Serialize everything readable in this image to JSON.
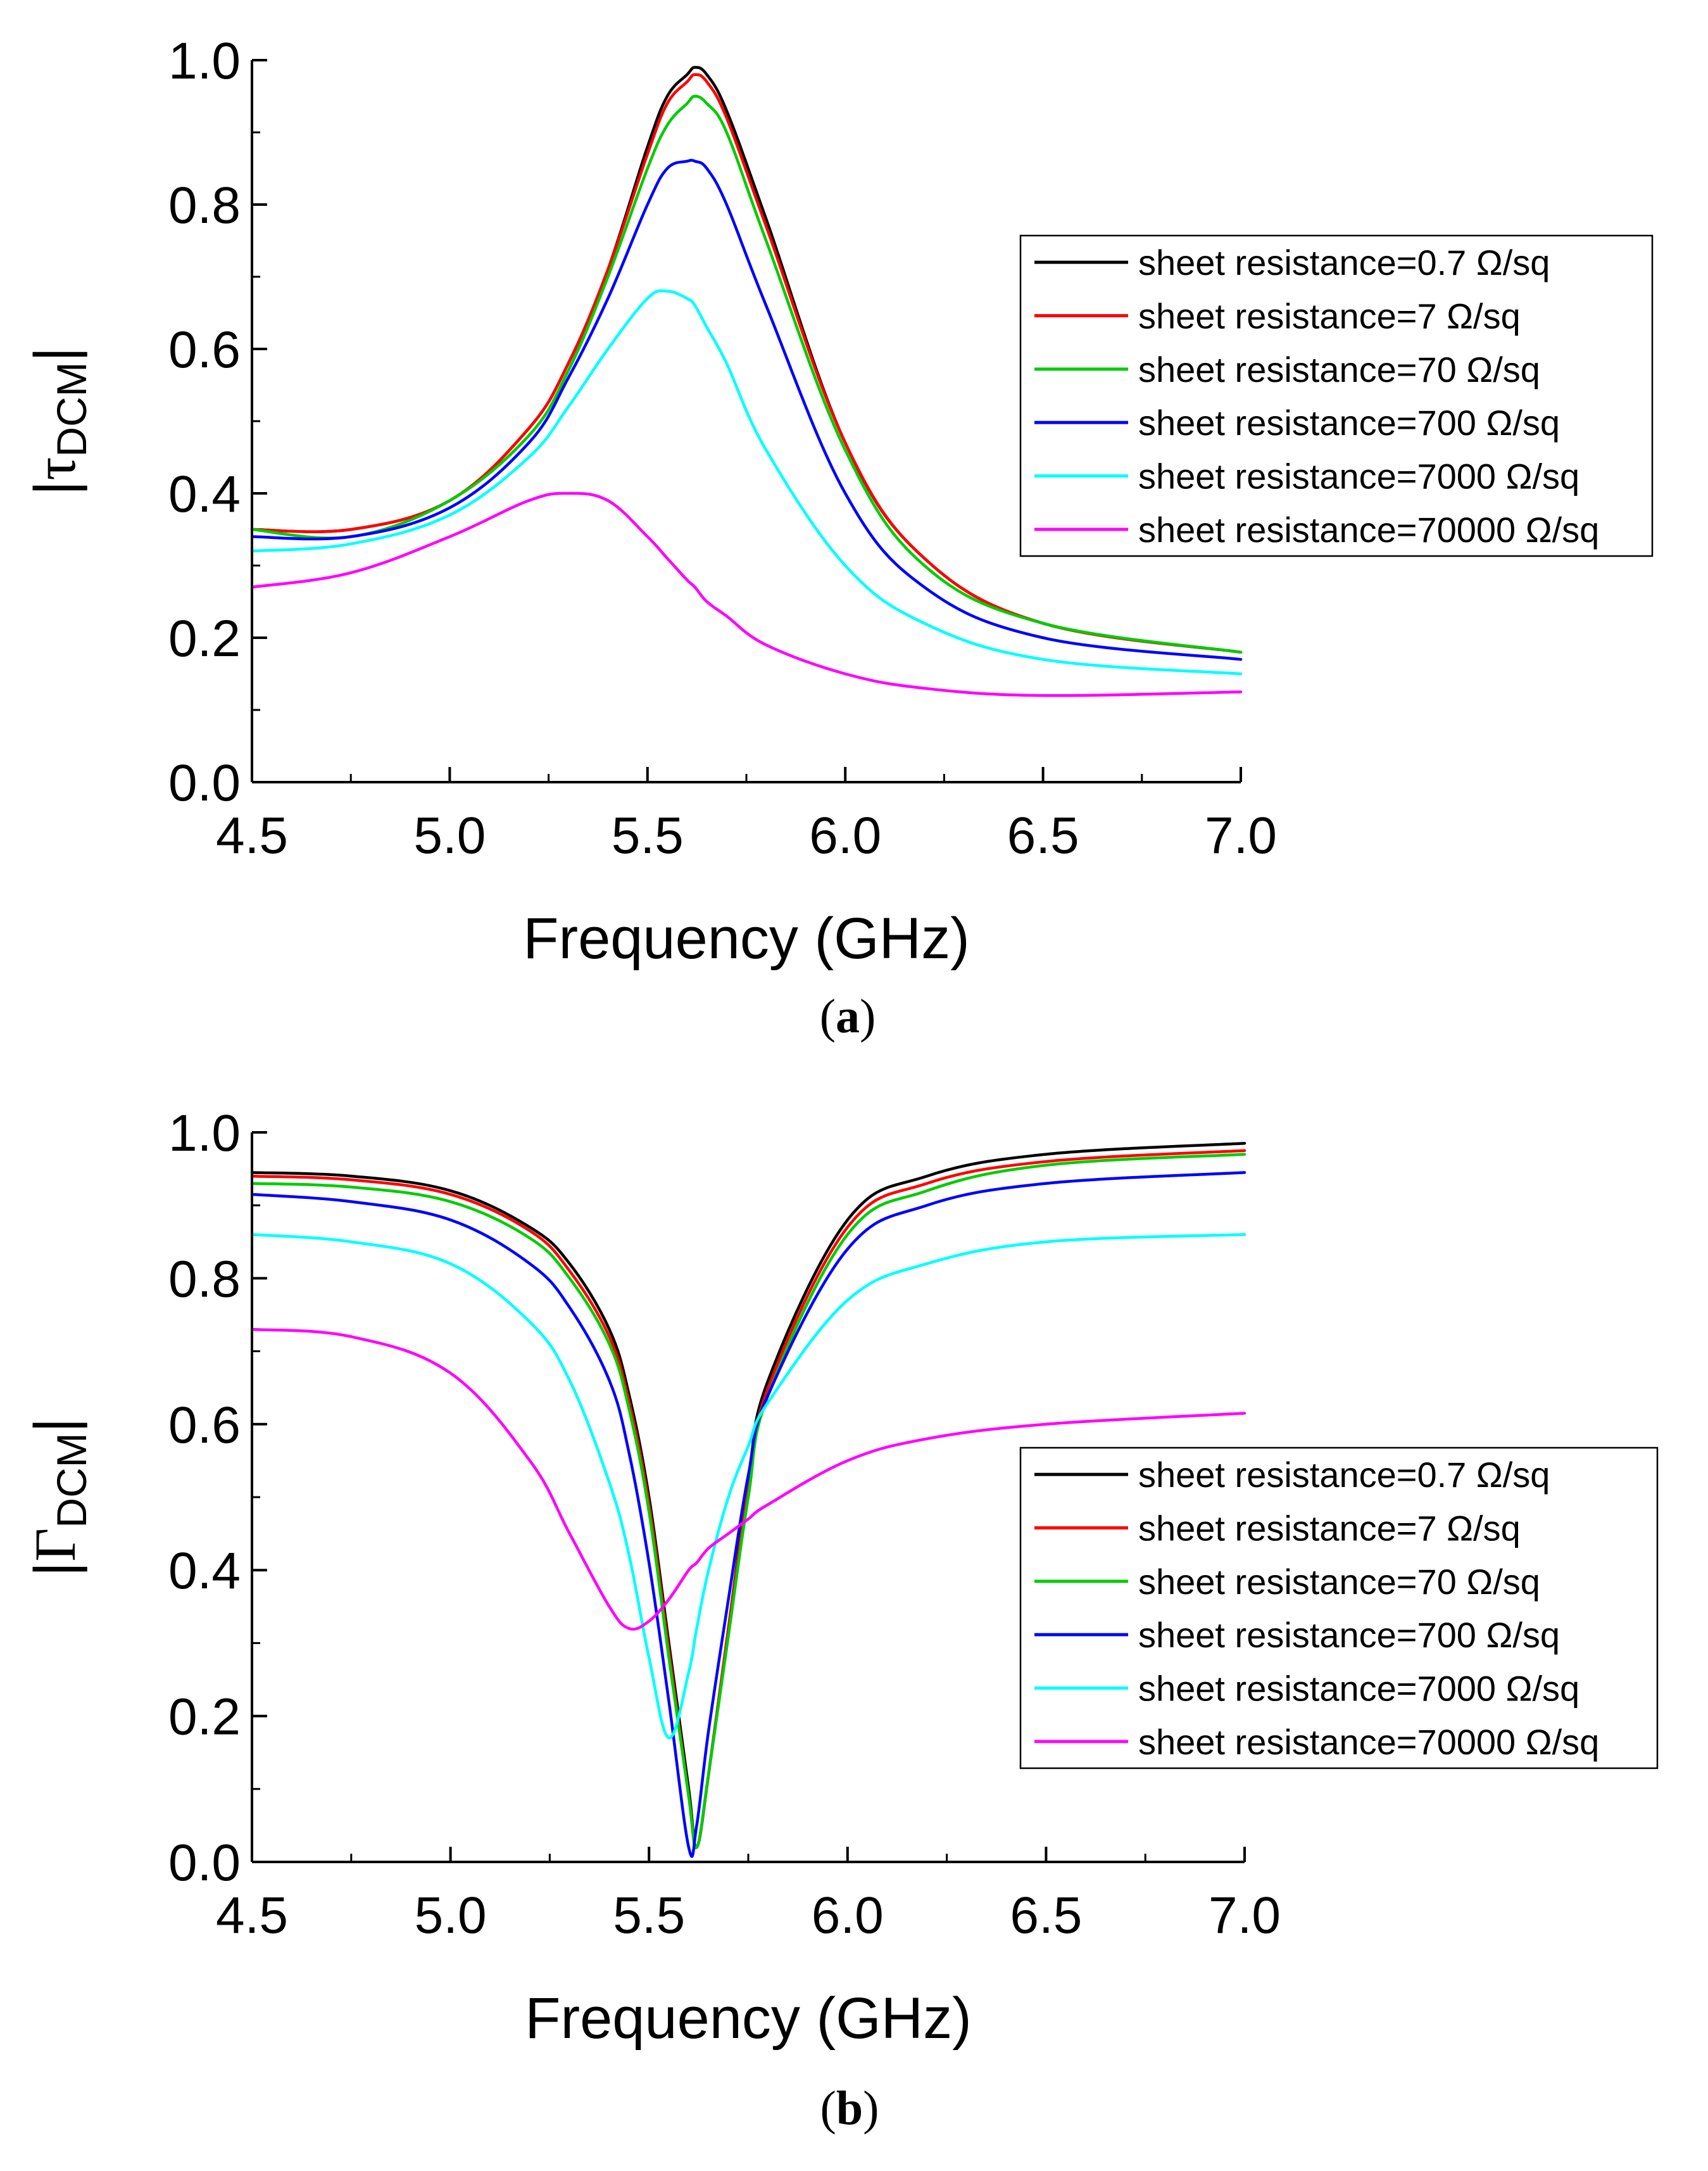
{
  "chart_data": [
    {
      "type": "line",
      "panel_label": "a",
      "ylabel_symbol": "τ",
      "ylabel_subscript": "DCM",
      "xlabel": "Frequency (GHz)",
      "xlim": [
        4.5,
        7.0
      ],
      "ylim": [
        0.0,
        1.0
      ],
      "xticks": [
        "4.5",
        "5.0",
        "5.5",
        "6.0",
        "6.5",
        "7.0"
      ],
      "yticks": [
        "0.0",
        "0.2",
        "0.4",
        "0.6",
        "0.8",
        "1.0"
      ],
      "grid": false,
      "legend_position": "right",
      "x": [
        4.5,
        4.75,
        5.0,
        5.2,
        5.3,
        5.4,
        5.5,
        5.55,
        5.6,
        5.62,
        5.65,
        5.7,
        5.8,
        6.0,
        6.2,
        6.5,
        7.0
      ],
      "series": [
        {
          "name": "sheet resistance=0.7 Ω/sq",
          "color": "#000000",
          "values": [
            0.35,
            0.35,
            0.39,
            0.49,
            0.58,
            0.71,
            0.88,
            0.95,
            0.98,
            0.99,
            0.98,
            0.93,
            0.78,
            0.47,
            0.31,
            0.22,
            0.18
          ]
        },
        {
          "name": "sheet resistance=7 Ω/sq",
          "color": "#ff0000",
          "values": [
            0.35,
            0.35,
            0.39,
            0.49,
            0.58,
            0.71,
            0.87,
            0.94,
            0.97,
            0.98,
            0.97,
            0.92,
            0.77,
            0.47,
            0.31,
            0.22,
            0.18
          ]
        },
        {
          "name": "sheet resistance=70 Ω/sq",
          "color": "#00cc00",
          "values": [
            0.35,
            0.34,
            0.39,
            0.48,
            0.57,
            0.7,
            0.85,
            0.91,
            0.94,
            0.95,
            0.94,
            0.9,
            0.75,
            0.46,
            0.3,
            0.22,
            0.18
          ]
        },
        {
          "name": "sheet resistance=700 Ω/sq",
          "color": "#0000ff",
          "values": [
            0.34,
            0.34,
            0.38,
            0.47,
            0.56,
            0.67,
            0.8,
            0.85,
            0.86,
            0.86,
            0.85,
            0.8,
            0.66,
            0.4,
            0.27,
            0.2,
            0.17
          ]
        },
        {
          "name": "sheet resistance=7000 Ω/sq",
          "color": "#00ffff",
          "values": [
            0.32,
            0.33,
            0.37,
            0.45,
            0.52,
            0.6,
            0.67,
            0.68,
            0.67,
            0.66,
            0.63,
            0.58,
            0.46,
            0.3,
            0.22,
            0.17,
            0.15
          ]
        },
        {
          "name": "sheet resistance=70000 Ω/sq",
          "color": "#ff00ff",
          "values": [
            0.27,
            0.29,
            0.34,
            0.39,
            0.4,
            0.39,
            0.34,
            0.31,
            0.28,
            0.27,
            0.25,
            0.23,
            0.19,
            0.15,
            0.13,
            0.12,
            0.125
          ]
        }
      ]
    },
    {
      "type": "line",
      "panel_label": "b",
      "ylabel_symbol": "Γ",
      "ylabel_subscript": "DCM",
      "xlabel": "Frequency (GHz)",
      "xlim": [
        4.5,
        7.0
      ],
      "ylim": [
        0.0,
        1.0
      ],
      "xticks": [
        "4.5",
        "5.0",
        "5.5",
        "6.0",
        "6.5",
        "7.0"
      ],
      "yticks": [
        "0.0",
        "0.2",
        "0.4",
        "0.6",
        "0.8",
        "1.0"
      ],
      "grid": false,
      "legend_position": "right",
      "x": [
        4.5,
        4.75,
        5.0,
        5.2,
        5.3,
        5.4,
        5.45,
        5.5,
        5.55,
        5.6,
        5.62,
        5.65,
        5.7,
        5.75,
        5.8,
        6.0,
        6.2,
        6.5,
        7.0
      ],
      "series": [
        {
          "name": "sheet resistance=0.7 Ω/sq",
          "color": "#000000",
          "values": [
            0.945,
            0.94,
            0.92,
            0.87,
            0.82,
            0.73,
            0.64,
            0.5,
            0.3,
            0.1,
            0.02,
            0.12,
            0.32,
            0.52,
            0.66,
            0.88,
            0.94,
            0.97,
            0.985
          ]
        },
        {
          "name": "sheet resistance=7 Ω/sq",
          "color": "#ff0000",
          "values": [
            0.94,
            0.935,
            0.915,
            0.865,
            0.81,
            0.72,
            0.63,
            0.49,
            0.29,
            0.09,
            0.02,
            0.12,
            0.32,
            0.51,
            0.65,
            0.87,
            0.93,
            0.96,
            0.975
          ]
        },
        {
          "name": "sheet resistance=70 Ω/sq",
          "color": "#00cc00",
          "values": [
            0.93,
            0.925,
            0.905,
            0.855,
            0.8,
            0.71,
            0.62,
            0.48,
            0.28,
            0.09,
            0.02,
            0.12,
            0.31,
            0.5,
            0.64,
            0.86,
            0.92,
            0.955,
            0.97
          ]
        },
        {
          "name": "sheet resistance=700 Ω/sq",
          "color": "#0000ff",
          "values": [
            0.915,
            0.905,
            0.88,
            0.82,
            0.76,
            0.66,
            0.56,
            0.41,
            0.22,
            0.02,
            0.05,
            0.18,
            0.36,
            0.53,
            0.64,
            0.84,
            0.9,
            0.93,
            0.945
          ]
        },
        {
          "name": "sheet resistance=7000 Ω/sq",
          "color": "#00ffff",
          "values": [
            0.86,
            0.85,
            0.82,
            0.74,
            0.66,
            0.52,
            0.42,
            0.28,
            0.17,
            0.26,
            0.32,
            0.4,
            0.5,
            0.57,
            0.63,
            0.77,
            0.82,
            0.85,
            0.86
          ]
        },
        {
          "name": "sheet resistance=70000 Ω/sq",
          "color": "#ff00ff",
          "values": [
            0.73,
            0.72,
            0.67,
            0.55,
            0.45,
            0.35,
            0.32,
            0.33,
            0.36,
            0.4,
            0.41,
            0.43,
            0.45,
            0.47,
            0.49,
            0.55,
            0.58,
            0.6,
            0.615
          ]
        }
      ]
    }
  ]
}
